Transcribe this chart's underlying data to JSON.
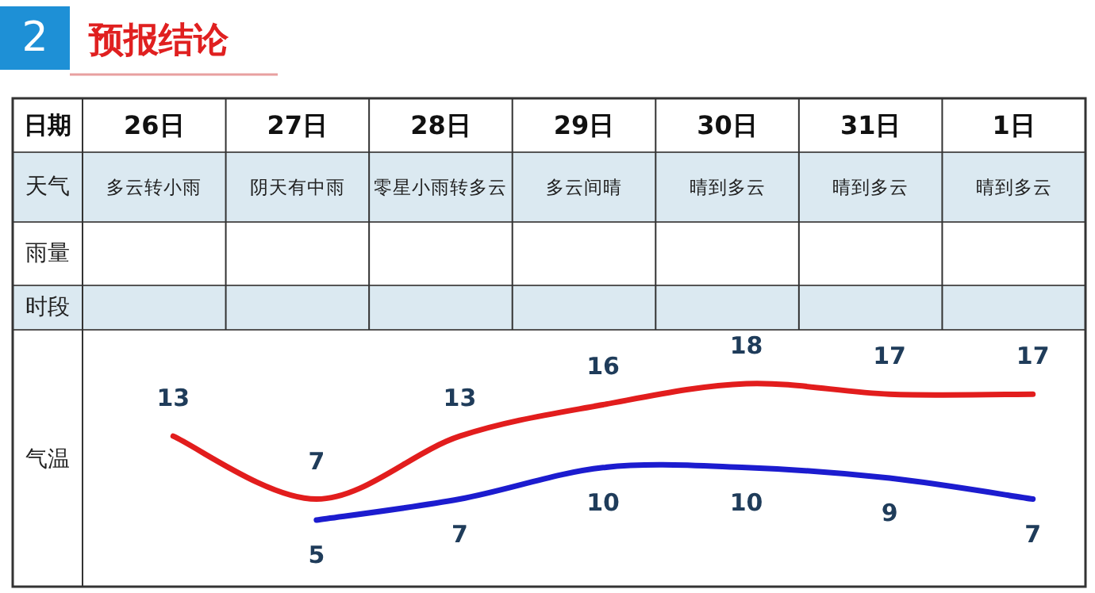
{
  "chart_data": {
    "type": "line",
    "title": "预报结论",
    "subtitle": "2",
    "xlabel": "日期",
    "ylabel": "气温",
    "categories": [
      "26日",
      "27日",
      "28日",
      "29日",
      "30日",
      "31日",
      "1日"
    ],
    "annotations": [
      "天气",
      "雨量",
      "时段",
      "多云转小雨",
      "阴天有中雨",
      "零星小雨转多云",
      "多云间晴",
      "晴到多云",
      "晴到多云",
      "晴到多云"
    ],
    "series": [
      {
        "color": "#e21d1d",
        "values": [
          13,
          7,
          13,
          16,
          18,
          17,
          17
        ]
      },
      {
        "color": "#1c1ccf",
        "values": [
          null,
          5,
          7,
          10,
          10,
          9,
          7
        ]
      }
    ],
    "data_labels": true,
    "marker": "none",
    "line_style": "solid"
  }
}
